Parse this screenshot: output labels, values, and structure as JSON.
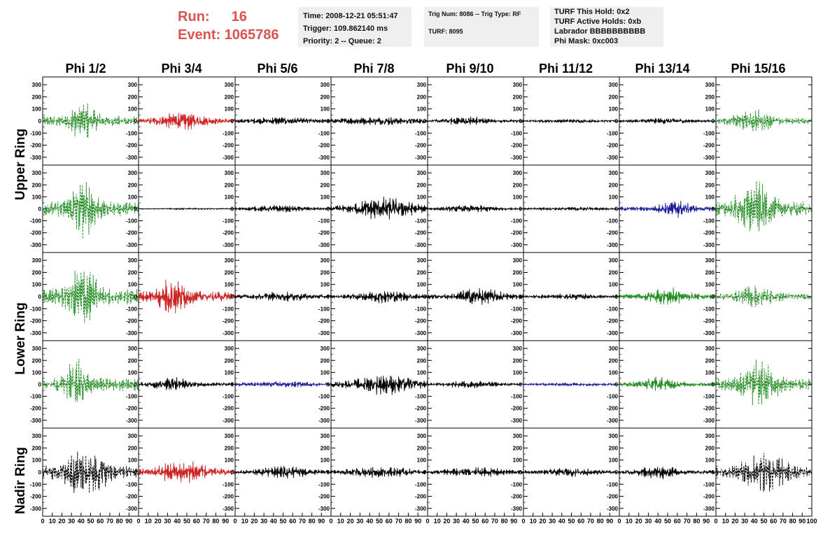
{
  "header": {
    "run_label": "Run:",
    "run_value": "16",
    "event_label": "Event:",
    "event_value": "1065786",
    "time": "Time: 2008-12-21 05:51:47",
    "trigger": "Trigger: 109.862140 ms",
    "priority": "Priority: 2 -- Queue: 2",
    "trig_num": "Trig Num: 8086 -- Trig Type: RF",
    "turf": "TURF: 8095",
    "turf_hold": "TURF This Hold: 0x2",
    "turf_active": "TURF Active Holds: 0xb",
    "labrador": "Labrador BBBBBBBBBB",
    "phi_mask": "Phi Mask: 0xc003"
  },
  "columns": [
    "Phi 1/2",
    "Phi 3/4",
    "Phi 5/6",
    "Phi 7/8",
    "Phi 9/10",
    "Phi 11/12",
    "Phi 13/14",
    "Phi 15/16"
  ],
  "row_labels": [
    "Upper Ring",
    "Lower Ring",
    "Nadir Ring"
  ],
  "colors": {
    "black": "#000000",
    "red": "#cc2222",
    "green": "#228b22",
    "blue": "#1c1c9a",
    "title_red": "#d9534f"
  },
  "chart_data": {
    "type": "line",
    "xlim": [
      0,
      100
    ],
    "ylim": [
      -330,
      330
    ],
    "yticks": [
      -300,
      -200,
      -100,
      0,
      100,
      200,
      300
    ],
    "xticks": [
      0,
      10,
      20,
      30,
      40,
      50,
      60,
      70,
      80,
      90,
      100
    ],
    "panels": [
      [
        {
          "color": "green",
          "dash": true,
          "amp": 150,
          "center": 42,
          "width": 14
        },
        {
          "color": "red",
          "dash": false,
          "amp": 70,
          "center": 45,
          "width": 25
        },
        {
          "color": "black",
          "dash": false,
          "amp": 30,
          "center": 50,
          "width": 40
        },
        {
          "color": "black",
          "dash": false,
          "amp": 35,
          "center": 50,
          "width": 45
        },
        {
          "color": "black",
          "dash": false,
          "amp": 40,
          "center": 40,
          "width": 22
        },
        {
          "color": "black",
          "dash": false,
          "amp": 15,
          "center": 50,
          "width": 40
        },
        {
          "color": "black",
          "dash": false,
          "amp": 25,
          "center": 45,
          "width": 30
        },
        {
          "color": "green",
          "dash": true,
          "amp": 90,
          "center": 40,
          "width": 20
        }
      ],
      [
        {
          "color": "green",
          "dash": true,
          "amp": 220,
          "center": 42,
          "width": 14
        },
        {
          "color": "black",
          "dash": false,
          "amp": 6,
          "center": 50,
          "width": 50
        },
        {
          "color": "black",
          "dash": false,
          "amp": 30,
          "center": 45,
          "width": 30
        },
        {
          "color": "black",
          "dash": false,
          "amp": 90,
          "center": 55,
          "width": 30
        },
        {
          "color": "black",
          "dash": false,
          "amp": 30,
          "center": 45,
          "width": 30
        },
        {
          "color": "black",
          "dash": false,
          "amp": 15,
          "center": 50,
          "width": 40
        },
        {
          "color": "blue",
          "dash": false,
          "amp": 70,
          "center": 58,
          "width": 16
        },
        {
          "color": "green",
          "dash": true,
          "amp": 220,
          "center": 40,
          "width": 18
        }
      ],
      [
        {
          "color": "green",
          "dash": true,
          "amp": 250,
          "center": 42,
          "width": 14
        },
        {
          "color": "red",
          "dash": false,
          "amp": 150,
          "center": 35,
          "width": 16
        },
        {
          "color": "black",
          "dash": false,
          "amp": 40,
          "center": 50,
          "width": 35
        },
        {
          "color": "black",
          "dash": false,
          "amp": 50,
          "center": 55,
          "width": 30
        },
        {
          "color": "black",
          "dash": false,
          "amp": 75,
          "center": 55,
          "width": 22
        },
        {
          "color": "black",
          "dash": false,
          "amp": 25,
          "center": 50,
          "width": 35
        },
        {
          "color": "green",
          "dash": false,
          "amp": 75,
          "center": 48,
          "width": 20
        },
        {
          "color": "green",
          "dash": true,
          "amp": 90,
          "center": 42,
          "width": 20
        }
      ],
      [
        {
          "color": "green",
          "dash": true,
          "amp": 200,
          "center": 35,
          "width": 12
        },
        {
          "color": "black",
          "dash": false,
          "amp": 60,
          "center": 35,
          "width": 18
        },
        {
          "color": "blue",
          "dash": false,
          "amp": 25,
          "center": 50,
          "width": 40
        },
        {
          "color": "black",
          "dash": false,
          "amp": 85,
          "center": 58,
          "width": 30
        },
        {
          "color": "black",
          "dash": false,
          "amp": 30,
          "center": 45,
          "width": 30
        },
        {
          "color": "blue",
          "dash": false,
          "amp": 15,
          "center": 50,
          "width": 40
        },
        {
          "color": "green",
          "dash": false,
          "amp": 60,
          "center": 40,
          "width": 20
        },
        {
          "color": "green",
          "dash": true,
          "amp": 190,
          "center": 45,
          "width": 18
        }
      ],
      [
        {
          "color": "black",
          "dash": true,
          "amp": 190,
          "center": 45,
          "width": 22
        },
        {
          "color": "red",
          "dash": false,
          "amp": 95,
          "center": 45,
          "width": 25
        },
        {
          "color": "black",
          "dash": false,
          "amp": 50,
          "center": 50,
          "width": 30
        },
        {
          "color": "black",
          "dash": false,
          "amp": 45,
          "center": 50,
          "width": 35
        },
        {
          "color": "black",
          "dash": false,
          "amp": 40,
          "center": 50,
          "width": 35
        },
        {
          "color": "black",
          "dash": false,
          "amp": 35,
          "center": 50,
          "width": 30
        },
        {
          "color": "black",
          "dash": false,
          "amp": 55,
          "center": 40,
          "width": 20
        },
        {
          "color": "black",
          "dash": true,
          "amp": 150,
          "center": 50,
          "width": 25
        }
      ]
    ]
  }
}
